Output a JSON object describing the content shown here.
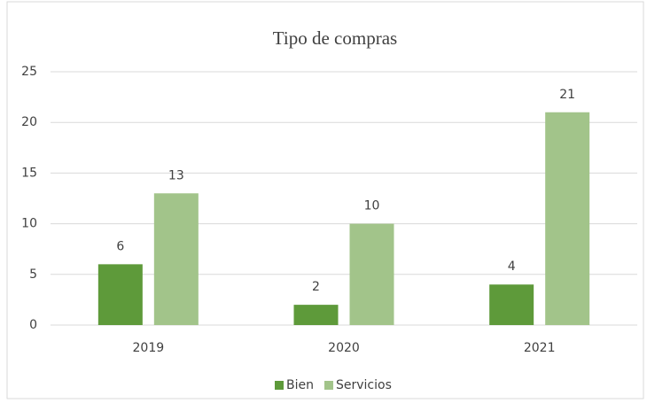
{
  "chart_data": {
    "type": "bar",
    "title": "Tipo de compras",
    "categories": [
      "2019",
      "2020",
      "2021"
    ],
    "series": [
      {
        "name": "Bien",
        "color": "#5e9a3a",
        "values": [
          6,
          2,
          4
        ]
      },
      {
        "name": "Servicios",
        "color": "#a2c48a",
        "values": [
          13,
          10,
          21
        ]
      }
    ],
    "ylim": [
      0,
      25
    ],
    "yticks": [
      0,
      5,
      10,
      15,
      20,
      25
    ],
    "grid": true,
    "legend": "bottom"
  }
}
